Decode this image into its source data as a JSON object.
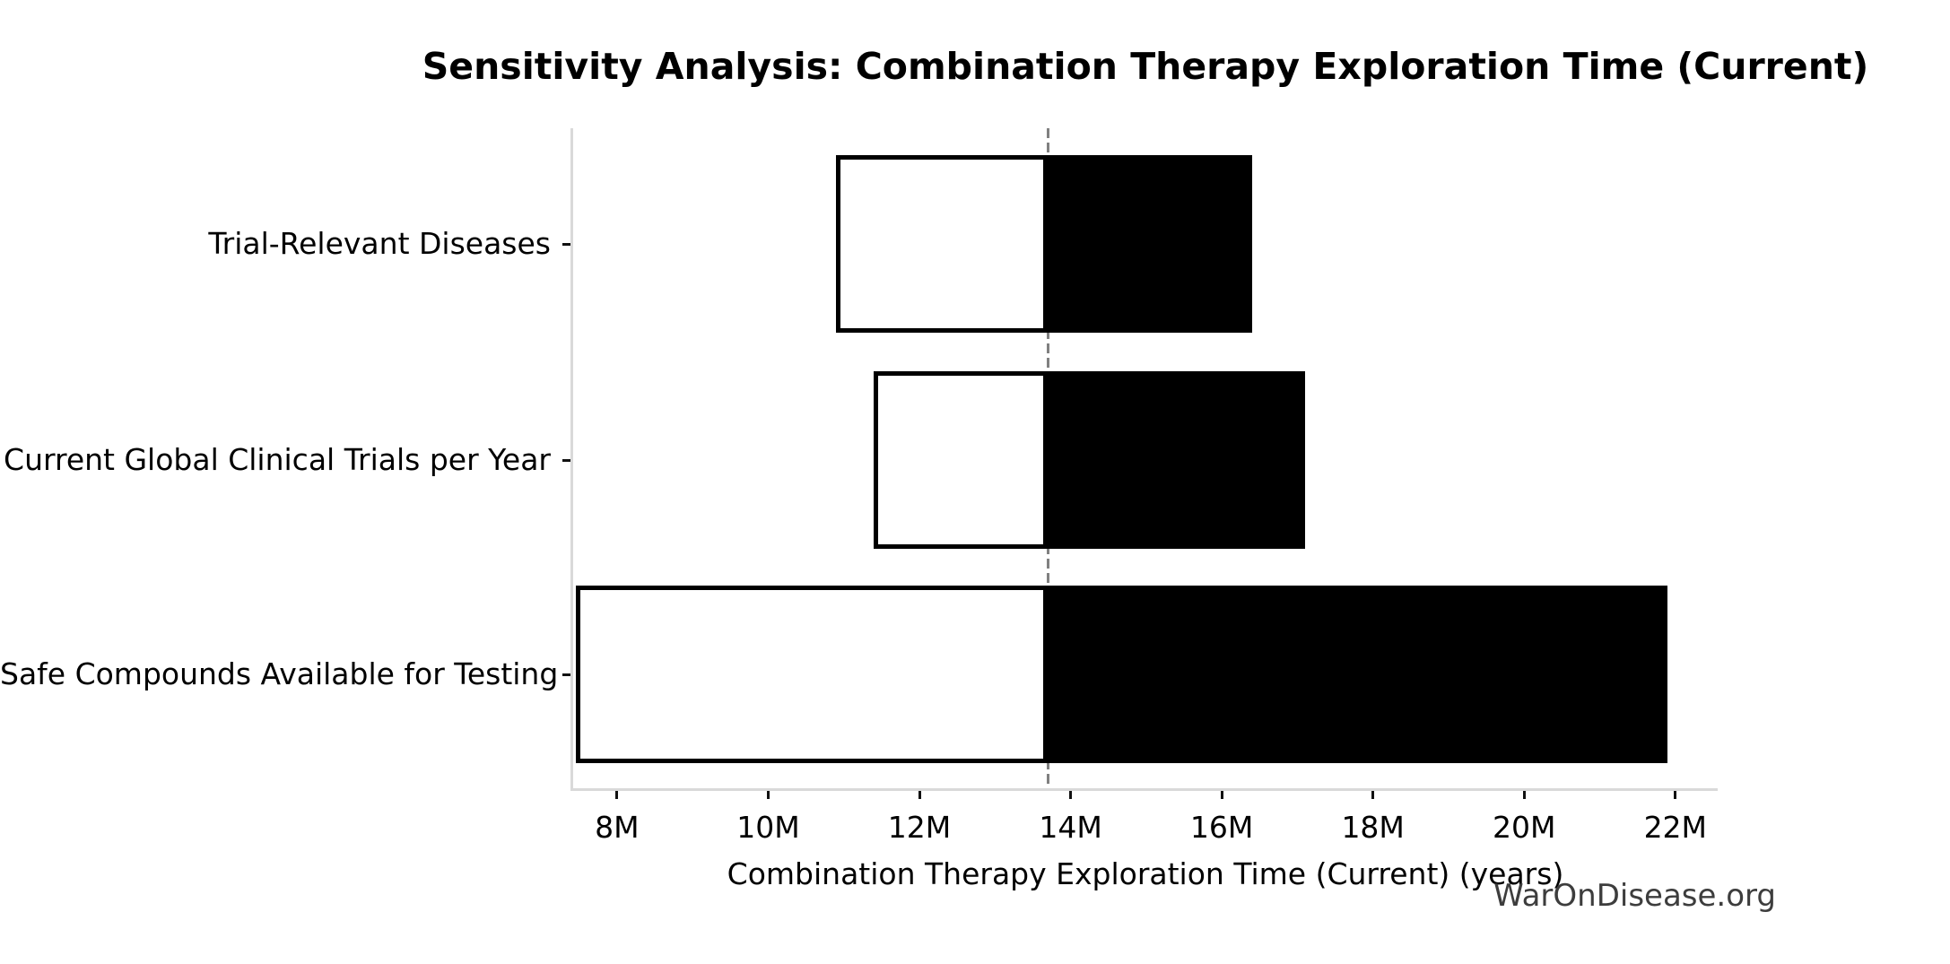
{
  "page": {
    "background": "#ffffff"
  },
  "chart_data": {
    "type": "bar",
    "subtype": "tornado_sensitivity",
    "orientation": "horizontal",
    "title": "Sensitivity Analysis: Combination Therapy Exploration Time (Current)",
    "xlabel": "Combination Therapy Exploration Time (Current) (years)",
    "watermark": "WarOnDisease.org",
    "baseline_value": 13.7,
    "xlim": [
      7.42,
      22.56
    ],
    "grid": false,
    "categories": [
      "Trial-Relevant Diseases",
      "Current Global Clinical Trials per Year",
      "Safe Compounds Available for Testing"
    ],
    "series": [
      {
        "name": "low_estimate",
        "fill": "#ffffff",
        "edge": "#000000",
        "values": [
          10.9,
          11.4,
          7.45
        ]
      },
      {
        "name": "high_estimate",
        "fill": "#000000",
        "edge": "#000000",
        "values": [
          16.4,
          17.1,
          21.9
        ]
      }
    ],
    "xticks": [
      {
        "value": 8,
        "label": "8M"
      },
      {
        "value": 10,
        "label": "10M"
      },
      {
        "value": 12,
        "label": "12M"
      },
      {
        "value": 14,
        "label": "14M"
      },
      {
        "value": 16,
        "label": "16M"
      },
      {
        "value": 18,
        "label": "18M"
      },
      {
        "value": 20,
        "label": "20M"
      },
      {
        "value": 22,
        "label": "22M"
      }
    ],
    "colors": {
      "baseline_line": "#808080",
      "axis_spine": "#d9d9d9",
      "tick": "#111111",
      "text": "#000000",
      "watermark": "#3d3d3d",
      "background": "#ffffff"
    }
  }
}
